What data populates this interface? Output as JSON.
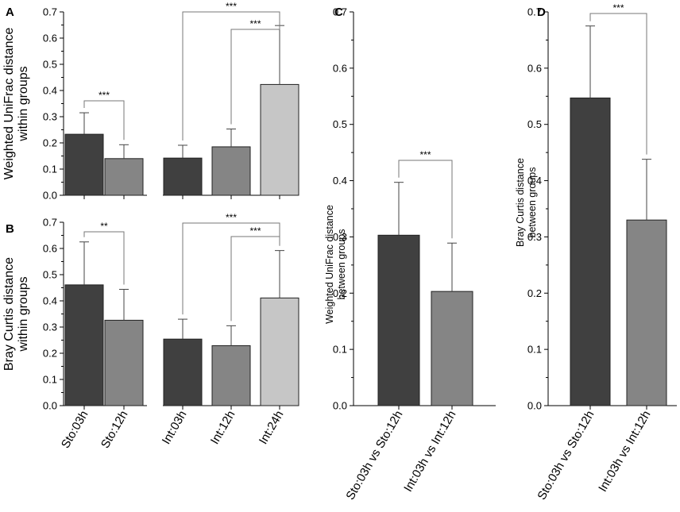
{
  "colors": {
    "dark": "#404040",
    "mid": "#858585",
    "light": "#c6c6c6"
  },
  "chart_data": [
    {
      "id": "A",
      "type": "bar",
      "letter": "A",
      "ylabel": [
        "Weighted UniFrac distance",
        "within groups"
      ],
      "ylim": [
        0,
        0.7
      ],
      "yticks": [
        "0.0",
        "0.1",
        "0.2",
        "0.3",
        "0.4",
        "0.5",
        "0.6",
        "0.7"
      ],
      "categories": [
        "Sto:03h",
        "Sto:12h",
        "Int:03h",
        "Int:12h",
        "Int:24h"
      ],
      "values": [
        0.233,
        0.14,
        0.142,
        0.185,
        0.423
      ],
      "errors": [
        0.082,
        0.053,
        0.049,
        0.068,
        0.225
      ],
      "bar_colors": [
        "dark",
        "mid",
        "dark",
        "mid",
        "light"
      ],
      "groups": [
        [
          0,
          1
        ],
        [
          2,
          3,
          4
        ]
      ],
      "significance": [
        {
          "from": 0,
          "to": 1,
          "label": "***"
        },
        {
          "from": 2,
          "to": 4,
          "label": "***"
        },
        {
          "from": 3,
          "to": 4,
          "label": "***"
        }
      ]
    },
    {
      "id": "B",
      "type": "bar",
      "letter": "B",
      "ylabel": [
        "Bray Curtis distance",
        "within groups"
      ],
      "ylim": [
        0,
        0.7
      ],
      "yticks": [
        "0.0",
        "0.1",
        "0.2",
        "0.3",
        "0.4",
        "0.5",
        "0.6",
        "0.7"
      ],
      "categories": [
        "Sto:03h",
        "Sto:12h",
        "Int:03h",
        "Int:12h",
        "Int:24h"
      ],
      "values": [
        0.461,
        0.326,
        0.254,
        0.229,
        0.411
      ],
      "errors": [
        0.164,
        0.118,
        0.076,
        0.076,
        0.181
      ],
      "bar_colors": [
        "dark",
        "mid",
        "dark",
        "mid",
        "light"
      ],
      "groups": [
        [
          0,
          1
        ],
        [
          2,
          3,
          4
        ]
      ],
      "significance": [
        {
          "from": 0,
          "to": 1,
          "label": "**"
        },
        {
          "from": 2,
          "to": 4,
          "label": "***"
        },
        {
          "from": 3,
          "to": 4,
          "label": "***"
        }
      ]
    },
    {
      "id": "C",
      "type": "bar",
      "letter": "C",
      "ylabel": [
        "Weighted UniFrac distance",
        "between groups"
      ],
      "ylim": [
        0,
        0.7
      ],
      "yticks": [
        "0.0",
        "0.1",
        "0.2",
        "0.3",
        "0.4",
        "0.5",
        "0.6",
        "0.7"
      ],
      "categories": [
        "Sto:03h vs Sto:12h",
        "Int:03h vs Int:12h"
      ],
      "values": [
        0.303,
        0.203
      ],
      "errors": [
        0.094,
        0.086
      ],
      "bar_colors": [
        "dark",
        "mid"
      ],
      "groups": [
        [
          0,
          1
        ]
      ],
      "significance": [
        {
          "from": 0,
          "to": 1,
          "label": "***"
        }
      ]
    },
    {
      "id": "D",
      "type": "bar",
      "letter": "D",
      "ylabel": [
        "Bray Curtis distance",
        "between groups"
      ],
      "ylim": [
        0,
        0.7
      ],
      "yticks": [
        "0.0",
        "0.1",
        "0.2",
        "0.3",
        "0.4",
        "0.5",
        "0.6",
        "0.7"
      ],
      "categories": [
        "Sto:03h vs Sto:12h",
        "Int:03h vs Int:12h"
      ],
      "values": [
        0.547,
        0.33
      ],
      "errors": [
        0.128,
        0.108
      ],
      "bar_colors": [
        "dark",
        "mid"
      ],
      "groups": [
        [
          0,
          1
        ]
      ],
      "significance": [
        {
          "from": 0,
          "to": 1,
          "label": "***"
        }
      ]
    }
  ]
}
